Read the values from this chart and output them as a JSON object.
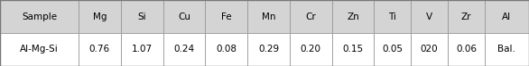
{
  "columns": [
    "Sample",
    "Mg",
    "Si",
    "Cu",
    "Fe",
    "Mn",
    "Cr",
    "Zn",
    "Ti",
    "V",
    "Zr",
    "Al"
  ],
  "row": [
    "Al-Mg-Si",
    "0.76",
    "1.07",
    "0.24",
    "0.08",
    "0.29",
    "0.20",
    "0.15",
    "0.05",
    "020",
    "0.06",
    "Bal."
  ],
  "header_bg": "#d4d4d4",
  "row_bg": "#ffffff",
  "border_color": "#999999",
  "text_color": "#000000",
  "fontsize": 7.5,
  "col_widths_raw": [
    1.45,
    0.78,
    0.78,
    0.78,
    0.78,
    0.78,
    0.78,
    0.78,
    0.68,
    0.68,
    0.68,
    0.82
  ],
  "fig_width": 5.86,
  "fig_height": 0.74,
  "dpi": 100
}
